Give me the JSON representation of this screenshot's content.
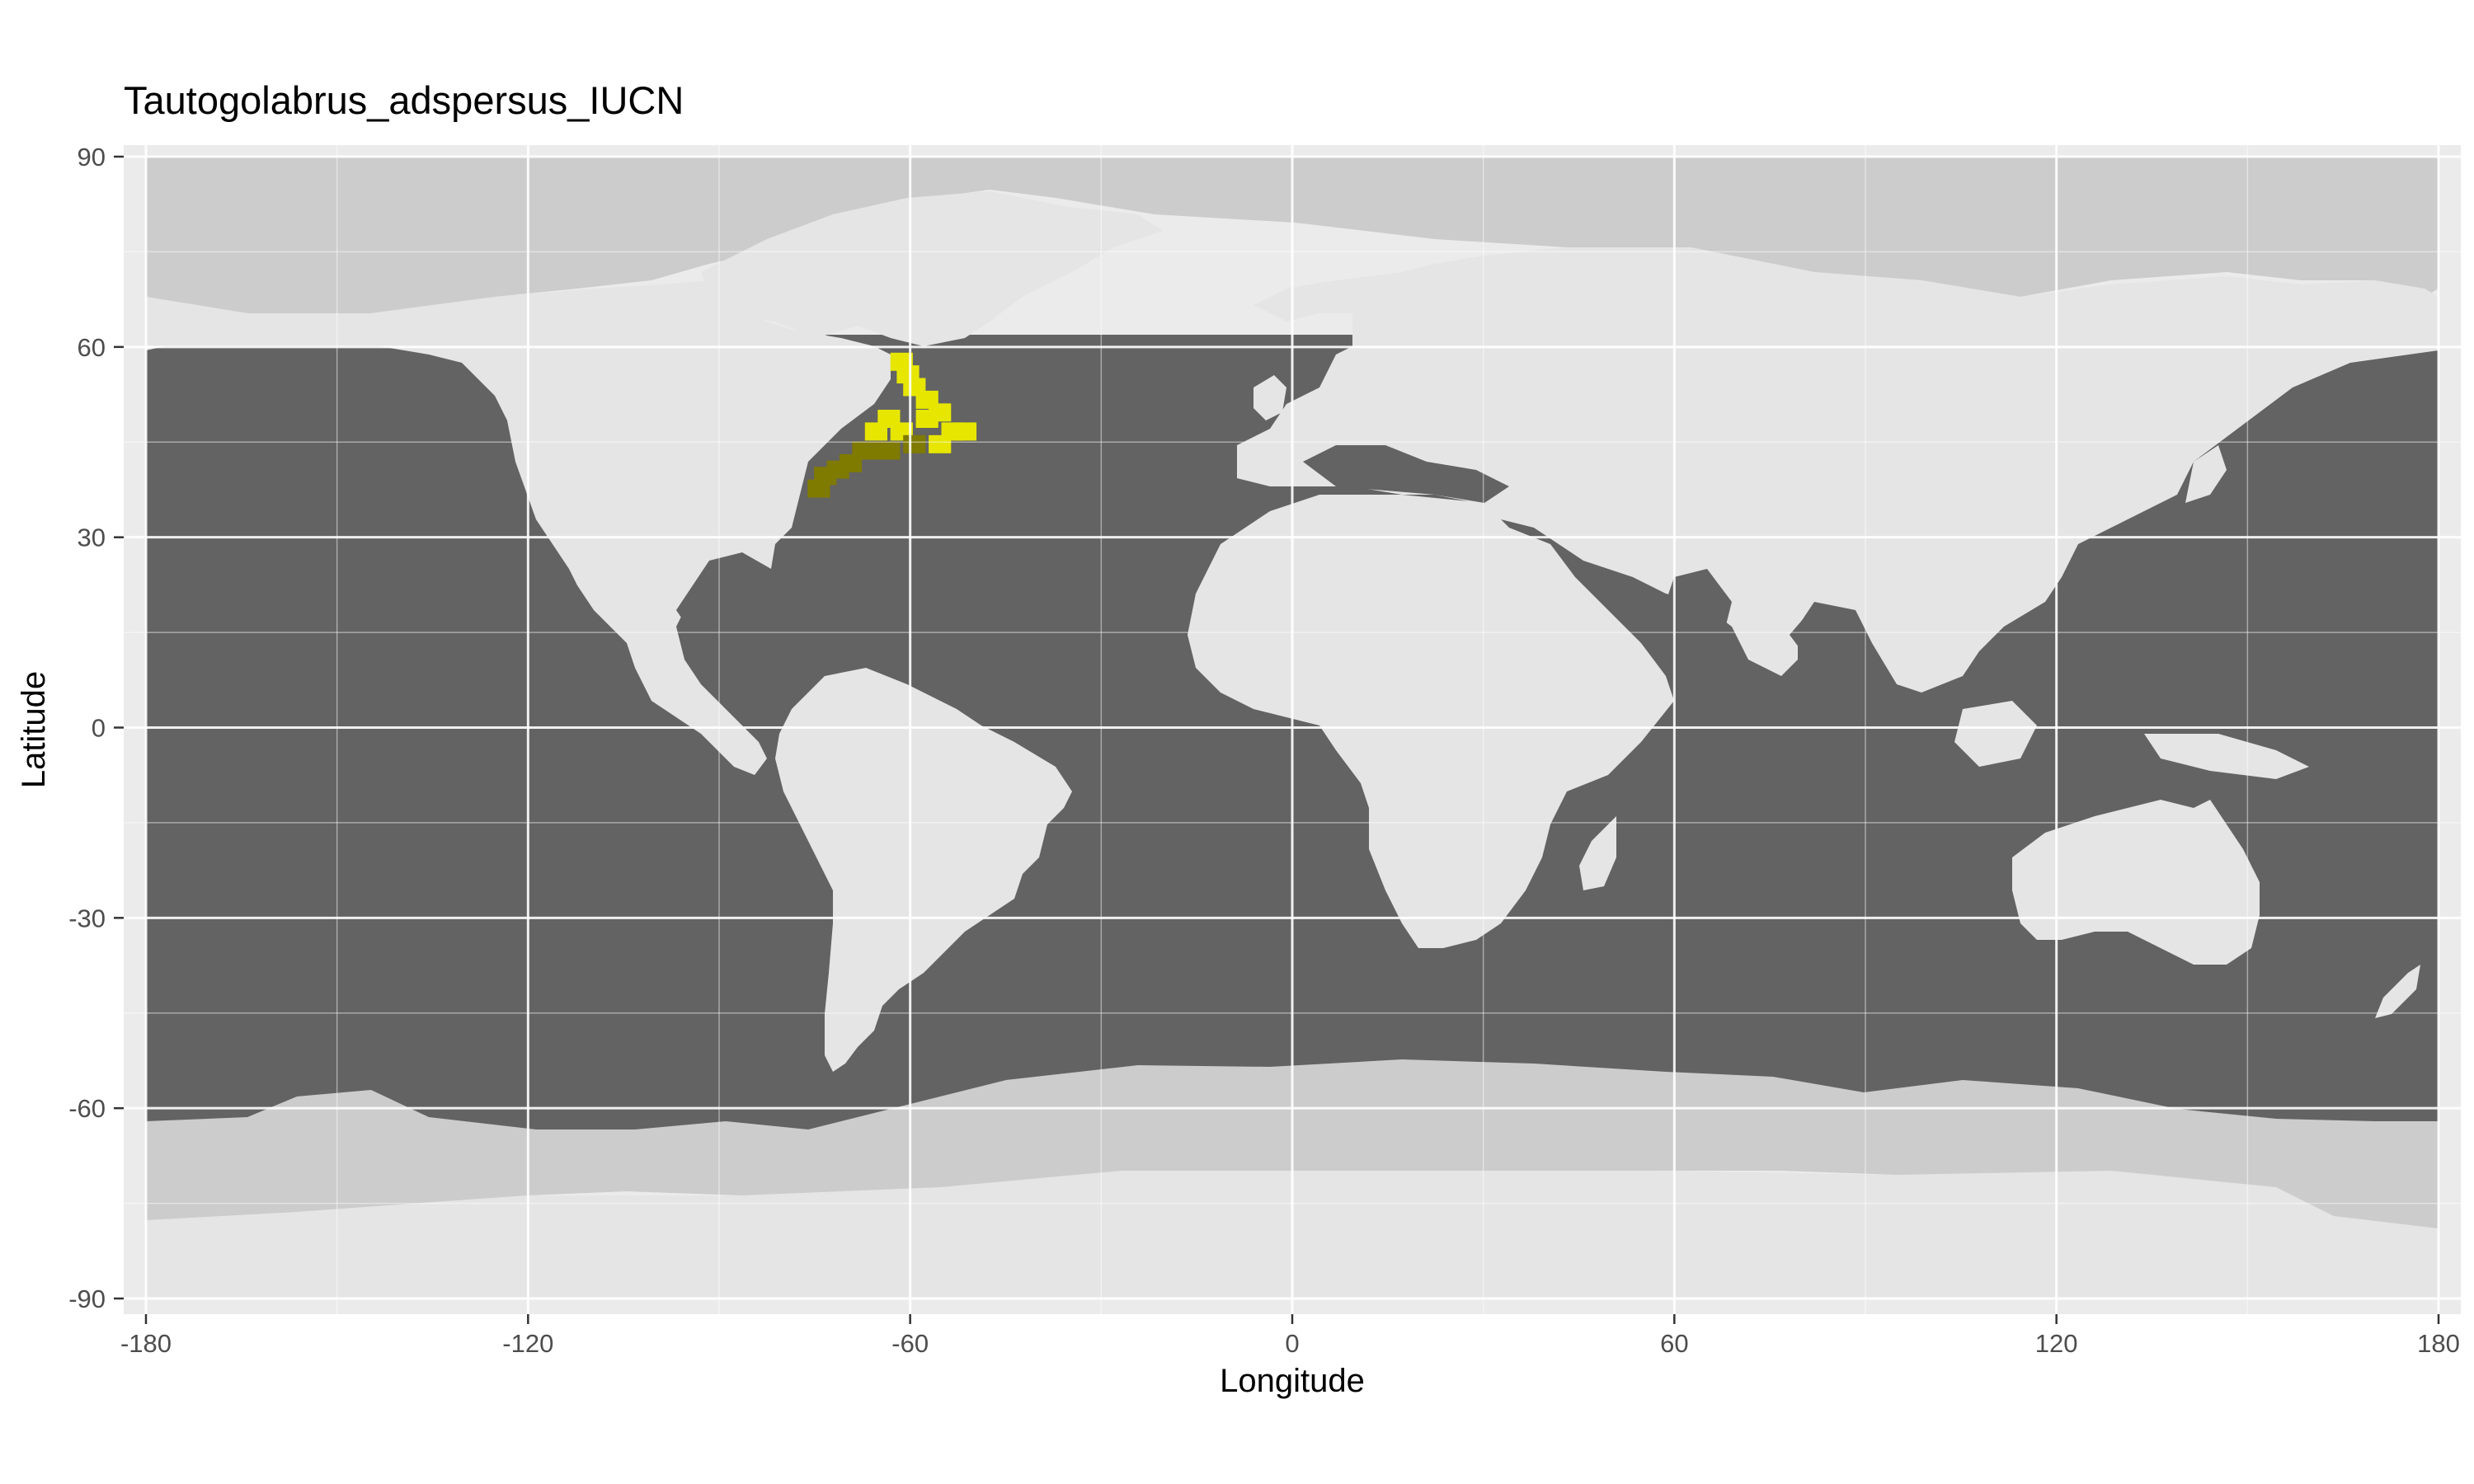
{
  "title": "Tautogolabrus_adspersus_IUCN",
  "xlabel": "Longitude",
  "ylabel": "Latitude",
  "x_ticks": [
    "-180",
    "-120",
    "-60",
    "0",
    "60",
    "120",
    "180"
  ],
  "y_ticks": [
    "90",
    "60",
    "30",
    "0",
    "-30",
    "-60",
    "-90"
  ],
  "colors": {
    "panel_background": "#ebebeb",
    "ocean": "#636363",
    "land": "#e5e5e5",
    "ice_shelf": "#cccccc",
    "range_offshore": "#e6e600",
    "range_inshore": "#7f7a00",
    "grid_major": "#ffffff"
  },
  "chart_data": {
    "type": "heatmap",
    "title": "Tautogolabrus_adspersus_IUCN",
    "xlabel": "Longitude",
    "ylabel": "Latitude",
    "xlim": [
      -180,
      180
    ],
    "ylim": [
      -90,
      90
    ],
    "x_breaks": [
      -180,
      -120,
      -60,
      0,
      60,
      120,
      180
    ],
    "y_breaks": [
      90,
      60,
      30,
      0,
      -30,
      -60,
      -90
    ],
    "grid": true,
    "species_range_cells": [
      {
        "lon": -62,
        "lat": 58
      },
      {
        "lon": -61,
        "lat": 56
      },
      {
        "lon": -60,
        "lat": 54
      },
      {
        "lon": -58,
        "lat": 52
      },
      {
        "lon": -56,
        "lat": 50
      },
      {
        "lon": -58,
        "lat": 49
      },
      {
        "lon": -64,
        "lat": 49
      },
      {
        "lon": -66,
        "lat": 47
      },
      {
        "lon": -62,
        "lat": 47
      },
      {
        "lon": -54,
        "lat": 47
      },
      {
        "lon": -52,
        "lat": 47
      },
      {
        "lon": -68,
        "lat": 44
      },
      {
        "lon": -66,
        "lat": 44
      },
      {
        "lon": -64,
        "lat": 44
      },
      {
        "lon": -60,
        "lat": 45
      },
      {
        "lon": -56,
        "lat": 45
      },
      {
        "lon": -70,
        "lat": 42
      },
      {
        "lon": -72,
        "lat": 41
      },
      {
        "lon": -74,
        "lat": 40
      },
      {
        "lon": -75,
        "lat": 38
      }
    ]
  }
}
